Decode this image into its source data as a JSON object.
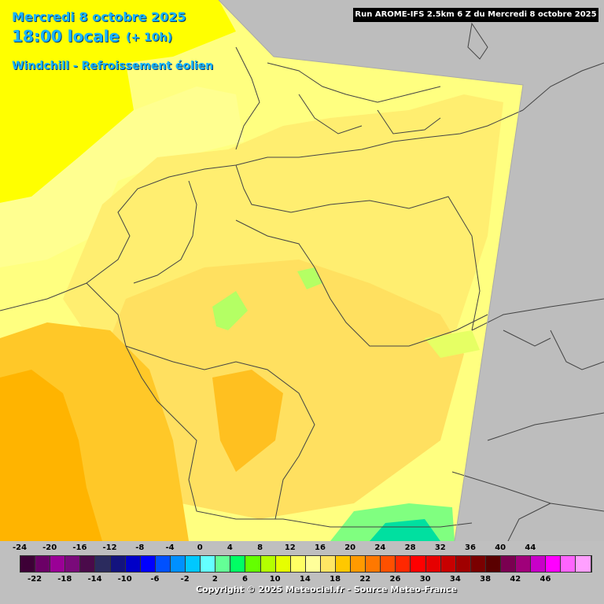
{
  "header": {
    "date": "Mercredi 8 octobre 2025",
    "time": "18:00 locale",
    "lead": "(+ 10h)",
    "parameter": "Windchill - Refroissement éolien",
    "run": "Run AROME-IFS 2.5km 6 Z du Mercredi 8 octobre 2025"
  },
  "legend": {
    "top_labels": [
      "-24",
      "-20",
      "-16",
      "-12",
      "-8",
      "-4",
      "0",
      "4",
      "8",
      "12",
      "16",
      "20",
      "24",
      "28",
      "32",
      "36",
      "40",
      "44"
    ],
    "bottom_labels": [
      "-22",
      "-18",
      "-14",
      "-10",
      "-6",
      "-2",
      "2",
      "6",
      "10",
      "14",
      "18",
      "22",
      "26",
      "30",
      "34",
      "38",
      "42",
      "46"
    ],
    "colors": [
      "#3d0036",
      "#6b0066",
      "#9a0096",
      "#7a0a7a",
      "#4a0a4a",
      "#2b2b5e",
      "#13137e",
      "#0000c8",
      "#0000ff",
      "#0050ff",
      "#0090ff",
      "#00c8ff",
      "#64ffff",
      "#64ff96",
      "#00ff64",
      "#64ff00",
      "#b4ff00",
      "#e6ff00",
      "#ffff64",
      "#ffff9a",
      "#ffe664",
      "#ffc800",
      "#ff9a00",
      "#ff7800",
      "#ff5000",
      "#ff2800",
      "#ff0000",
      "#e60000",
      "#c80000",
      "#a00000",
      "#7a0000",
      "#5a0000",
      "#7a0050",
      "#a0007a",
      "#c800c8",
      "#ff00ff",
      "#ff64ff",
      "#ffa0ff"
    ]
  },
  "footer": {
    "copyright": "Copyright © 2025 Meteociel.fr - Source Meteo-France"
  },
  "palette": {
    "outside": "#bdbdbd",
    "pale": "#ffff80",
    "yellow": "#ffff00",
    "light_gold": "#ffe664",
    "gold": "#ffd040",
    "orange": "#ffb400",
    "green": "#64ff96"
  }
}
